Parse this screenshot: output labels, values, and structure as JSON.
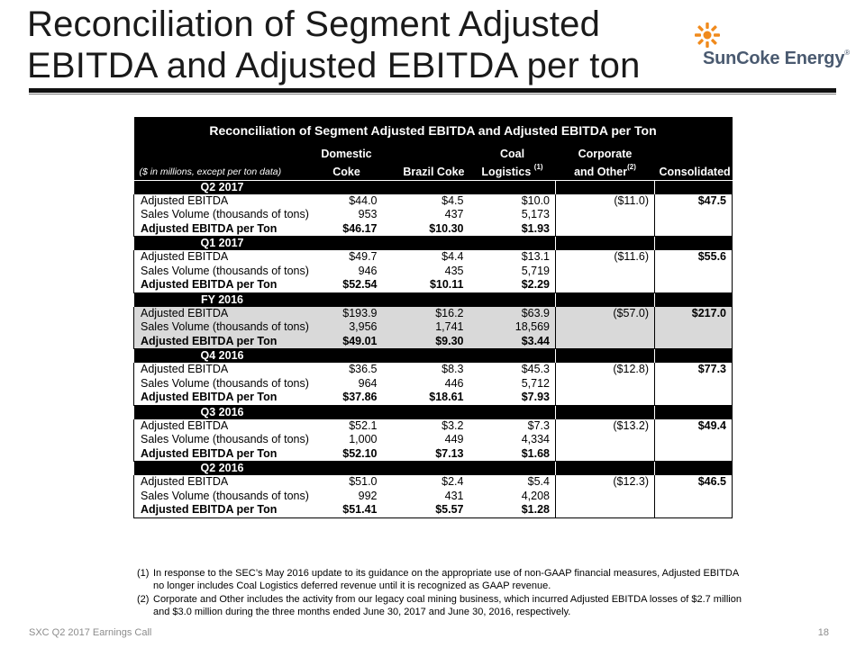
{
  "slide": {
    "title_line1": "Reconciliation of Segment Adjusted",
    "title_line2": "EBITDA and Adjusted EBITDA per ton",
    "logo_text": "SunCoke Energy",
    "logo_reg": "®",
    "footer_left": "SXC Q2 2017 Earnings Call",
    "page_number": "18"
  },
  "table": {
    "title": "Reconciliation of Segment Adjusted EBITDA and Adjusted EBITDA per Ton",
    "units_note": "($ in millions, except per ton data)",
    "columns": {
      "domestic_line1": "Domestic",
      "domestic_line2": "Coke",
      "brazil": "Brazil Coke",
      "coal_line1": "Coal",
      "coal_line2": "Logistics",
      "coal_sup": "(1)",
      "corp_line1": "Corporate",
      "corp_line2": "and Other",
      "corp_sup": "(2)",
      "consolidated": "Consolidated"
    },
    "sections": [
      {
        "label": "Q2 2017",
        "rows": [
          {
            "label": "Adjusted EBITDA",
            "domestic": "$44.0",
            "brazil": "$4.5",
            "coal": "$10.0",
            "corp": "($11.0)",
            "consolidated": "$47.5"
          },
          {
            "label": "Sales Volume (thousands of tons)",
            "domestic": "953",
            "brazil": "437",
            "coal": "5,173",
            "corp": "",
            "consolidated": ""
          },
          {
            "label": "Adjusted EBITDA per Ton",
            "domestic": "$46.17",
            "brazil": "$10.30",
            "coal": "$1.93",
            "corp": "",
            "consolidated": ""
          }
        ]
      },
      {
        "label": "Q1 2017",
        "rows": [
          {
            "label": "Adjusted EBITDA",
            "domestic": "$49.7",
            "brazil": "$4.4",
            "coal": "$13.1",
            "corp": "($11.6)",
            "consolidated": "$55.6"
          },
          {
            "label": "Sales Volume (thousands of tons)",
            "domestic": "946",
            "brazil": "435",
            "coal": "5,719",
            "corp": "",
            "consolidated": ""
          },
          {
            "label": "Adjusted EBITDA per Ton",
            "domestic": "$52.54",
            "brazil": "$10.11",
            "coal": "$2.29",
            "corp": "",
            "consolidated": ""
          }
        ]
      },
      {
        "label": "FY 2016",
        "rows": [
          {
            "label": "Adjusted EBITDA",
            "domestic": "$193.9",
            "brazil": "$16.2",
            "coal": "$63.9",
            "corp": "($57.0)",
            "consolidated": "$217.0"
          },
          {
            "label": "Sales Volume (thousands of tons)",
            "domestic": "3,956",
            "brazil": "1,741",
            "coal": "18,569",
            "corp": "",
            "consolidated": ""
          },
          {
            "label": "Adjusted EBITDA per Ton",
            "domestic": "$49.01",
            "brazil": "$9.30",
            "coal": "$3.44",
            "corp": "",
            "consolidated": ""
          }
        ]
      },
      {
        "label": "Q4 2016",
        "rows": [
          {
            "label": "Adjusted EBITDA",
            "domestic": "$36.5",
            "brazil": "$8.3",
            "coal": "$45.3",
            "corp": "($12.8)",
            "consolidated": "$77.3"
          },
          {
            "label": "Sales Volume (thousands of tons)",
            "domestic": "964",
            "brazil": "446",
            "coal": "5,712",
            "corp": "",
            "consolidated": ""
          },
          {
            "label": "Adjusted EBITDA per Ton",
            "domestic": "$37.86",
            "brazil": "$18.61",
            "coal": "$7.93",
            "corp": "",
            "consolidated": ""
          }
        ]
      },
      {
        "label": "Q3 2016",
        "rows": [
          {
            "label": "Adjusted EBITDA",
            "domestic": "$52.1",
            "brazil": "$3.2",
            "coal": "$7.3",
            "corp": "($13.2)",
            "consolidated": "$49.4"
          },
          {
            "label": "Sales Volume (thousands of tons)",
            "domestic": "1,000",
            "brazil": "449",
            "coal": "4,334",
            "corp": "",
            "consolidated": ""
          },
          {
            "label": "Adjusted EBITDA per Ton",
            "domestic": "$52.10",
            "brazil": "$7.13",
            "coal": "$1.68",
            "corp": "",
            "consolidated": ""
          }
        ]
      },
      {
        "label": "Q2 2016",
        "rows": [
          {
            "label": "Adjusted EBITDA",
            "domestic": "$51.0",
            "brazil": "$2.4",
            "coal": "$5.4",
            "corp": "($12.3)",
            "consolidated": "$46.5"
          },
          {
            "label": "Sales Volume (thousands of tons)",
            "domestic": "992",
            "brazil": "431",
            "coal": "4,208",
            "corp": "",
            "consolidated": ""
          },
          {
            "label": "Adjusted EBITDA per Ton",
            "domestic": "$51.41",
            "brazil": "$5.57",
            "coal": "$1.28",
            "corp": "",
            "consolidated": ""
          }
        ]
      }
    ]
  },
  "footnotes": [
    {
      "num": "(1)",
      "text": "In response to the SEC’s May 2016 update to its guidance on the appropriate use of non-GAAP financial measures, Adjusted EBITDA no longer includes Coal Logistics deferred revenue until it is recognized as GAAP revenue."
    },
    {
      "num": "(2)",
      "text": "Corporate and Other includes the activity from our legacy coal mining business, which incurred Adjusted EBITDA losses of $2.7 million and $3.0 million during the three months ended June 30, 2017 and June 30, 2016, respectively."
    }
  ],
  "colors": {
    "header_bg": "#000000",
    "shade_bg": "#d9d9d9",
    "logo_orange": "#f08a1c",
    "logo_text": "#4a5a70"
  },
  "icons": {
    "logo_mark": "sun-icon"
  }
}
